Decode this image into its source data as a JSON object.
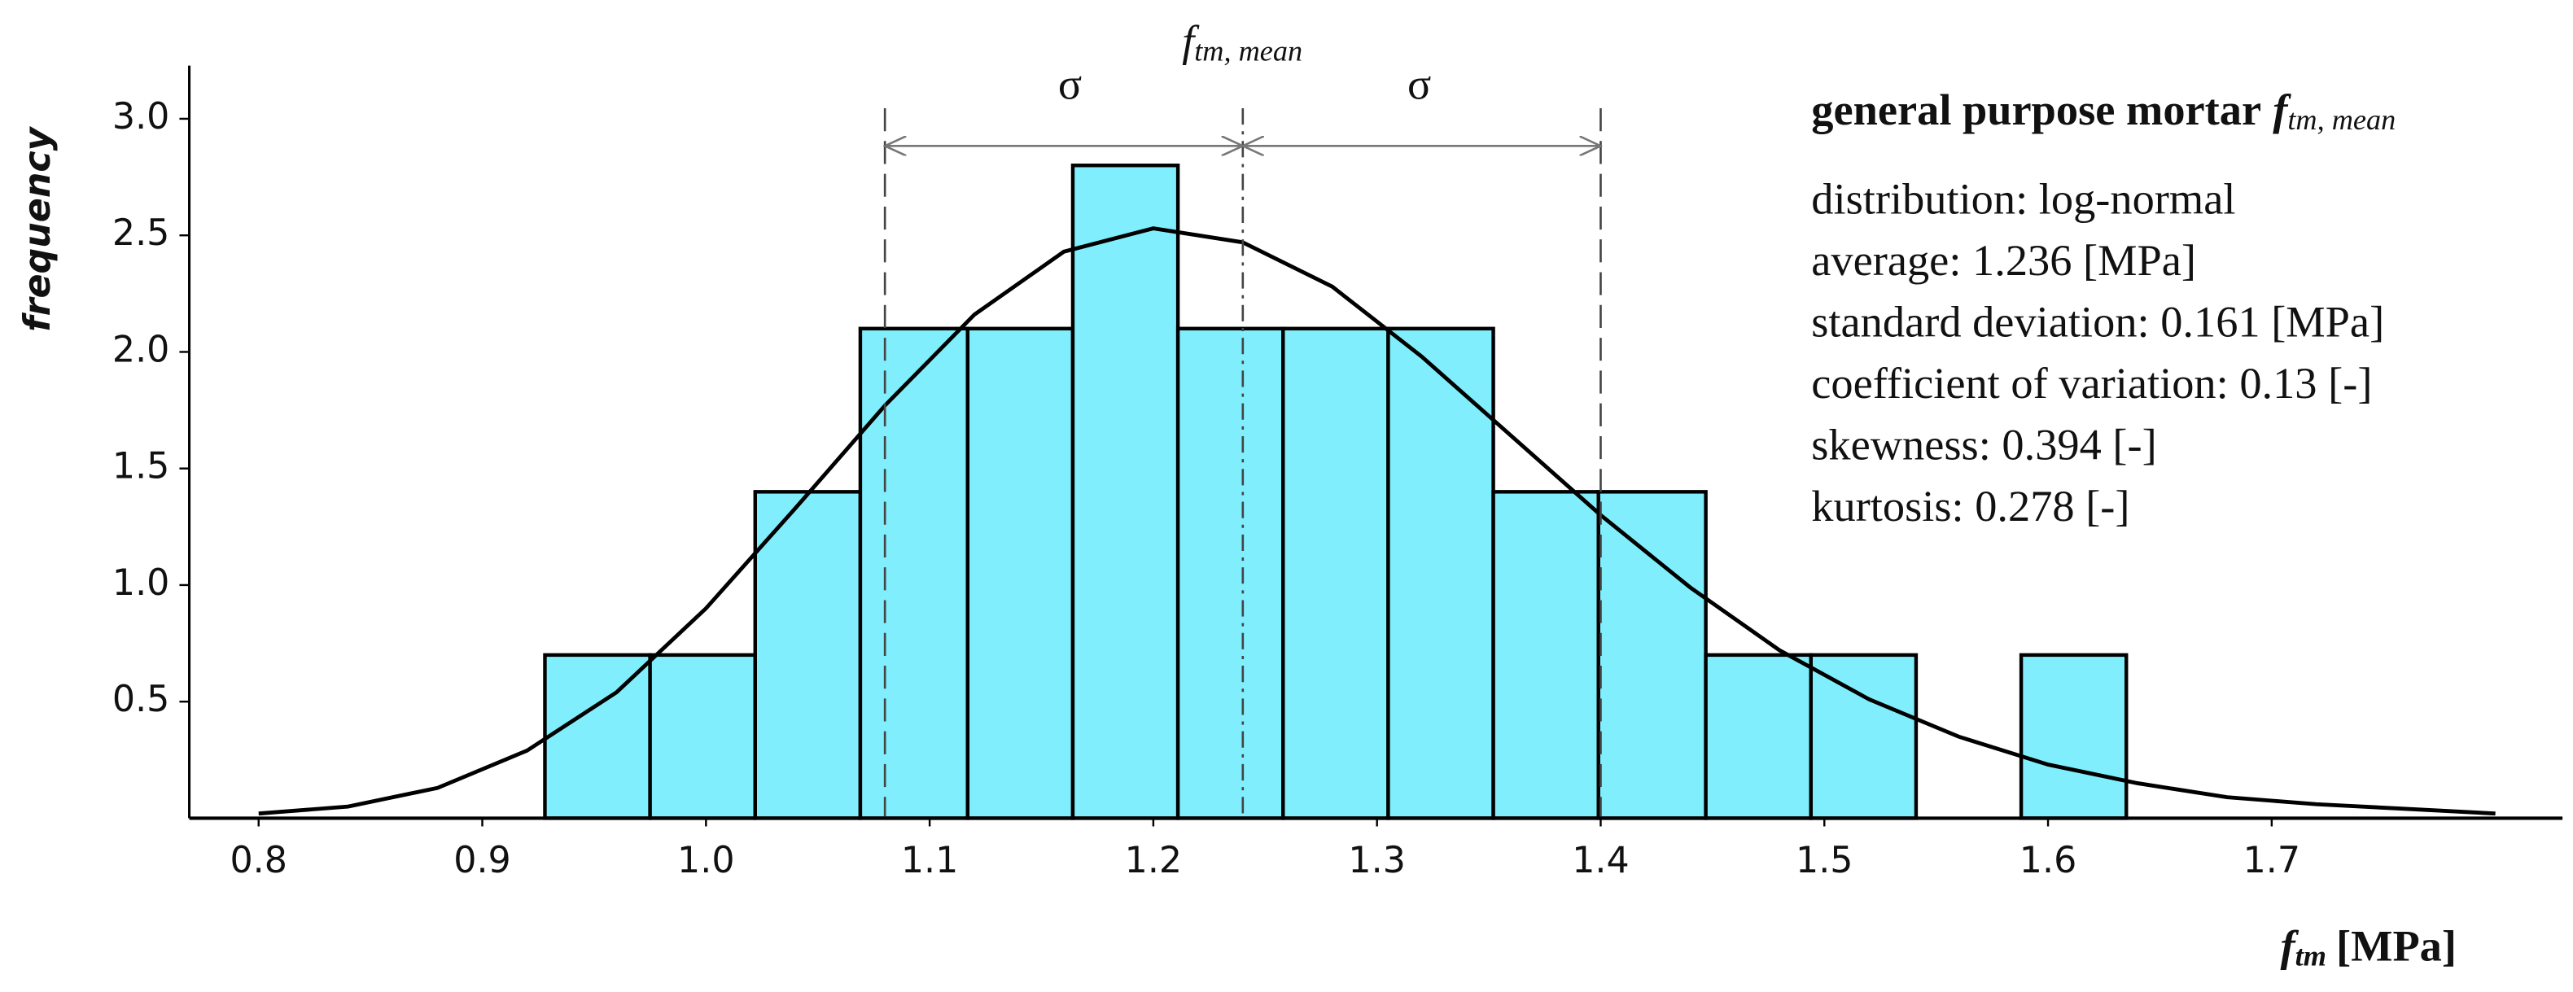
{
  "chart_data": {
    "type": "histogram",
    "y_label": "frequency",
    "x_label": {
      "symbol": "f",
      "subscript": "tm",
      "unit": "[MPa]"
    },
    "bins": [
      0.928,
      0.975,
      1.022,
      1.069,
      1.117,
      1.164,
      1.211,
      1.258,
      1.305,
      1.352,
      1.399,
      1.447,
      1.494,
      1.541,
      1.588,
      1.635
    ],
    "counts": [
      0.7,
      0.7,
      1.4,
      2.1,
      2.1,
      2.8,
      2.1,
      2.1,
      2.1,
      1.4,
      1.4,
      0.7,
      0.7,
      0,
      0.7
    ],
    "color": "#80eefc",
    "curve": {
      "color": "#000000",
      "x": [
        0.8,
        0.84,
        0.88,
        0.92,
        0.96,
        1.0,
        1.04,
        1.08,
        1.12,
        1.16,
        1.2,
        1.24,
        1.28,
        1.32,
        1.36,
        1.4,
        1.44,
        1.48,
        1.52,
        1.56,
        1.6,
        1.64,
        1.68,
        1.72,
        1.76,
        1.8
      ],
      "y": [
        0.02,
        0.05,
        0.13,
        0.29,
        0.54,
        0.9,
        1.33,
        1.77,
        2.16,
        2.43,
        2.53,
        2.47,
        2.28,
        1.98,
        1.64,
        1.3,
        0.99,
        0.72,
        0.51,
        0.35,
        0.23,
        0.15,
        0.09,
        0.06,
        0.04,
        0.02
      ]
    },
    "reference_lines": {
      "mean": 1.24,
      "lower": 1.08,
      "upper": 1.4
    },
    "annotations": {
      "mean_label": {
        "symbol": "f",
        "subscript": "tm, mean"
      },
      "sigma_left": "σ",
      "sigma_right": "σ"
    },
    "info": {
      "title": "general purpose mortar",
      "title_symbol": "f",
      "title_subscript": "tm, mean",
      "lines": [
        "distribution: log-normal",
        "average: 1.236 [MPa]",
        "standard deviation: 0.161 [MPa]",
        "coefficient of variation: 0.13 [-]",
        "skewness: 0.394 [-]",
        "kurtosis: 0.278 [-]"
      ]
    },
    "xlim": [
      0.769,
      1.83
    ],
    "ylim": [
      0,
      3.2
    ],
    "xticks": [
      0.8,
      0.9,
      {
        "value": 1,
        "label": "1.0"
      },
      1.1,
      1.2,
      1.3,
      1.4,
      1.5,
      1.6,
      1.7
    ],
    "yticks": [
      0.5,
      {
        "value": 1,
        "label": "1.0"
      },
      1.5,
      {
        "value": 2,
        "label": "2.0"
      },
      2.5,
      {
        "value": 3,
        "label": "3.0"
      }
    ]
  }
}
